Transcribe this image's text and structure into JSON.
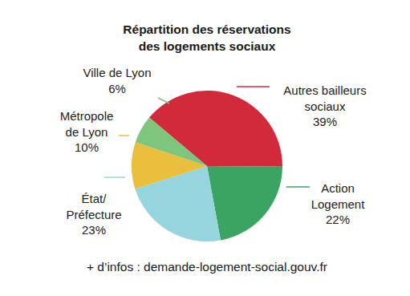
{
  "chart_data": {
    "type": "pie",
    "title": [
      "Répartition des réservations",
      "des logements sociaux"
    ],
    "categories": [
      "Autres bailleurs sociaux",
      "Action Logement",
      "État/Préfecture",
      "Métropole de Lyon",
      "Ville de Lyon"
    ],
    "values": [
      39,
      22,
      23,
      10,
      6
    ],
    "value_labels": [
      "39%",
      "22%",
      "23%",
      "10%",
      "6%"
    ],
    "colors": [
      "#d12a3b",
      "#3aa463",
      "#97d5de",
      "#eabf3d",
      "#7ec67e"
    ],
    "data_labels": true,
    "note": "+ d’infos : demande-logement-social.gouv.fr"
  }
}
